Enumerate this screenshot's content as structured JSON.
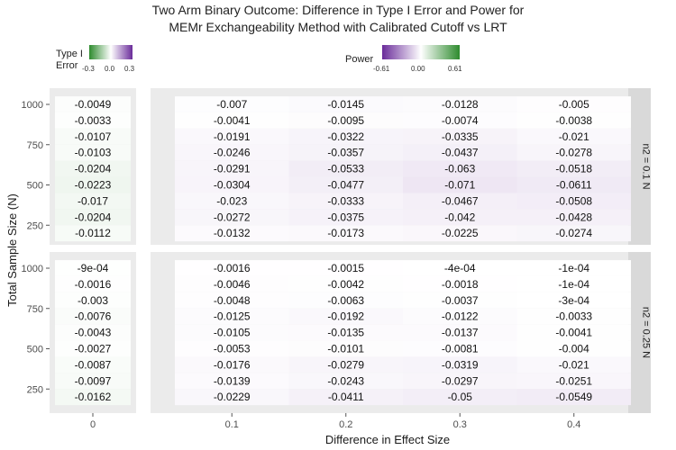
{
  "title_line1": "Two Arm Binary Outcome: Difference in Type I Error and Power for",
  "title_line2": "MEMr Exchangeability Method with Calibrated Cutoff vs LRT",
  "legend_type1": {
    "title_line1": "Type I",
    "title_line2": "Error",
    "ticks": [
      "-0.3",
      "0.0",
      "0.3"
    ],
    "low_color": "#2e8b2e",
    "mid_color": "#ffffff",
    "high_color": "#6a2c9a"
  },
  "legend_power": {
    "title": "Power",
    "ticks": [
      "-0.61",
      "0.00",
      "0.61"
    ],
    "low_color": "#6a2c9a",
    "mid_color": "#ffffff",
    "high_color": "#2e8b2e"
  },
  "chart_data": {
    "type": "heatmap",
    "xlabel": "Difference in Effect Size",
    "ylabel": "Total Sample Size (N)",
    "x_tick_labels": [
      "0",
      "0.1",
      "0.2",
      "0.3",
      "0.4"
    ],
    "y_tick_labels": [
      "250",
      "500",
      "750",
      "1000"
    ],
    "row_values_N": [
      1000,
      900,
      800,
      700,
      600,
      500,
      400,
      300,
      200
    ],
    "panels": [
      {
        "strip_label": "n2 = 0.1 N",
        "type1_error_diff": [
          -0.0049,
          -0.0033,
          -0.0107,
          -0.0103,
          -0.0204,
          -0.0223,
          -0.017,
          -0.0204,
          -0.0112
        ],
        "type1_error_labels": [
          "-0.0049",
          "-0.0033",
          "-0.0107",
          "-0.0103",
          "-0.0204",
          "-0.0223",
          "-0.017",
          "-0.0204",
          "-0.0112"
        ],
        "power_diff": [
          [
            -0.007,
            -0.0145,
            -0.0128,
            -0.005
          ],
          [
            -0.0041,
            -0.0095,
            -0.0074,
            -0.0038
          ],
          [
            -0.0191,
            -0.0322,
            -0.0335,
            -0.021
          ],
          [
            -0.0246,
            -0.0357,
            -0.0437,
            -0.0278
          ],
          [
            -0.0291,
            -0.0533,
            -0.063,
            -0.0518
          ],
          [
            -0.0304,
            -0.0477,
            -0.071,
            -0.0611
          ],
          [
            -0.023,
            -0.0333,
            -0.0467,
            -0.0508
          ],
          [
            -0.0272,
            -0.0375,
            -0.042,
            -0.0428
          ],
          [
            -0.0132,
            -0.0173,
            -0.0225,
            -0.0274
          ]
        ],
        "power_labels": [
          [
            "-0.007",
            "-0.0145",
            "-0.0128",
            "-0.005"
          ],
          [
            "-0.0041",
            "-0.0095",
            "-0.0074",
            "-0.0038"
          ],
          [
            "-0.0191",
            "-0.0322",
            "-0.0335",
            "-0.021"
          ],
          [
            "-0.0246",
            "-0.0357",
            "-0.0437",
            "-0.0278"
          ],
          [
            "-0.0291",
            "-0.0533",
            "-0.063",
            "-0.0518"
          ],
          [
            "-0.0304",
            "-0.0477",
            "-0.071",
            "-0.0611"
          ],
          [
            "-0.023",
            "-0.0333",
            "-0.0467",
            "-0.0508"
          ],
          [
            "-0.0272",
            "-0.0375",
            "-0.042",
            "-0.0428"
          ],
          [
            "-0.0132",
            "-0.0173",
            "-0.0225",
            "-0.0274"
          ]
        ]
      },
      {
        "strip_label": "n2 = 0.25 N",
        "type1_error_diff": [
          -0.0009,
          -0.0016,
          -0.003,
          -0.0076,
          -0.0043,
          -0.0027,
          -0.0087,
          -0.0097,
          -0.0162
        ],
        "type1_error_labels": [
          "-9e-04",
          "-0.0016",
          "-0.003",
          "-0.0076",
          "-0.0043",
          "-0.0027",
          "-0.0087",
          "-0.0097",
          "-0.0162"
        ],
        "power_diff": [
          [
            -0.0016,
            -0.0015,
            -0.0004,
            -0.0001
          ],
          [
            -0.0046,
            -0.0042,
            -0.0018,
            -0.0001
          ],
          [
            -0.0048,
            -0.0063,
            -0.0037,
            -0.0003
          ],
          [
            -0.0125,
            -0.0192,
            -0.0122,
            -0.0033
          ],
          [
            -0.0105,
            -0.0135,
            -0.0137,
            -0.0041
          ],
          [
            -0.0053,
            -0.0101,
            -0.0081,
            -0.004
          ],
          [
            -0.0176,
            -0.0279,
            -0.0319,
            -0.021
          ],
          [
            -0.0139,
            -0.0243,
            -0.0297,
            -0.0251
          ],
          [
            -0.0229,
            -0.0411,
            -0.05,
            -0.0549
          ]
        ],
        "power_labels": [
          [
            "-0.0016",
            "-0.0015",
            "-4e-04",
            "-1e-04"
          ],
          [
            "-0.0046",
            "-0.0042",
            "-0.0018",
            "-1e-04"
          ],
          [
            "-0.0048",
            "-0.0063",
            "-0.0037",
            "-3e-04"
          ],
          [
            "-0.0125",
            "-0.0192",
            "-0.0122",
            "-0.0033"
          ],
          [
            "-0.0105",
            "-0.0135",
            "-0.0137",
            "-0.0041"
          ],
          [
            "-0.0053",
            "-0.0101",
            "-0.0081",
            "-0.004"
          ],
          [
            "-0.0176",
            "-0.0279",
            "-0.0319",
            "-0.021"
          ],
          [
            "-0.0139",
            "-0.0243",
            "-0.0297",
            "-0.0251"
          ],
          [
            "-0.0229",
            "-0.0411",
            "-0.05",
            "-0.0549"
          ]
        ]
      }
    ],
    "type1_scale_limits": [
      -0.3,
      0.3
    ],
    "power_scale_limits": [
      -0.61,
      0.61
    ]
  }
}
